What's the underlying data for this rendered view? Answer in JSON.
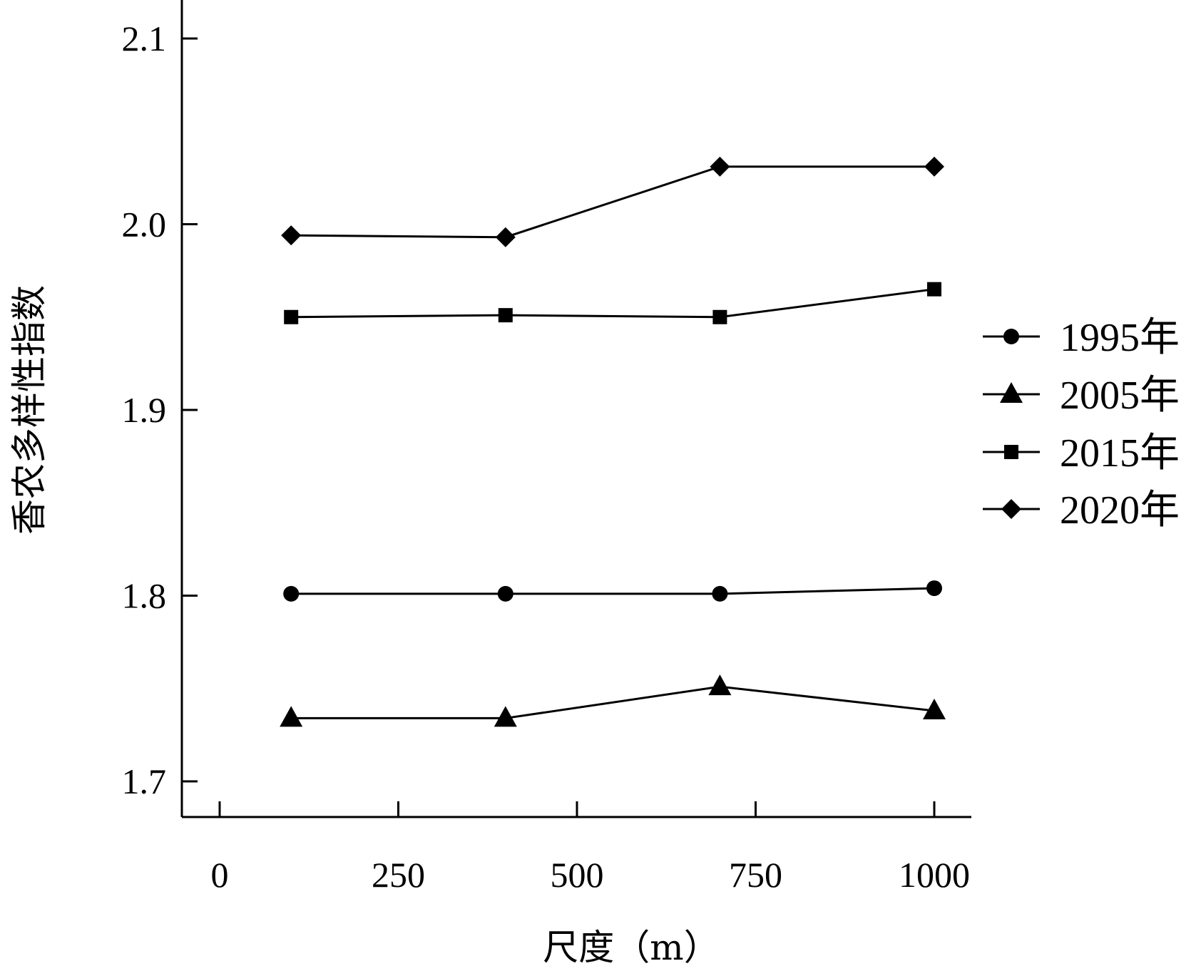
{
  "chart_data": {
    "type": "line",
    "xlabel": "尺度（m）",
    "ylabel": "香农多样性指数",
    "xlim": [
      -50,
      1050
    ],
    "ylim": [
      1.68,
      2.12
    ],
    "x_ticks": [
      0,
      250,
      500,
      750,
      1000
    ],
    "x_tick_labels": [
      "0",
      "250",
      "500",
      "750",
      "1000"
    ],
    "y_ticks": [
      1.7,
      1.8,
      1.9,
      2.0,
      2.1
    ],
    "y_tick_labels": [
      "1.7",
      "1.8",
      "1.9",
      "2.0",
      "2.1"
    ],
    "grid": false,
    "legend_position": "right",
    "x": [
      100,
      400,
      700,
      1000
    ],
    "series": [
      {
        "name": "1995年",
        "marker": "circle",
        "values": [
          1.801,
          1.801,
          1.801,
          1.804
        ]
      },
      {
        "name": "2005年",
        "marker": "triangle",
        "values": [
          1.734,
          1.734,
          1.751,
          1.738
        ]
      },
      {
        "name": "2015年",
        "marker": "square",
        "values": [
          1.95,
          1.951,
          1.95,
          1.965
        ]
      },
      {
        "name": "2020年",
        "marker": "diamond",
        "values": [
          1.994,
          1.993,
          2.031,
          2.031
        ]
      }
    ]
  }
}
